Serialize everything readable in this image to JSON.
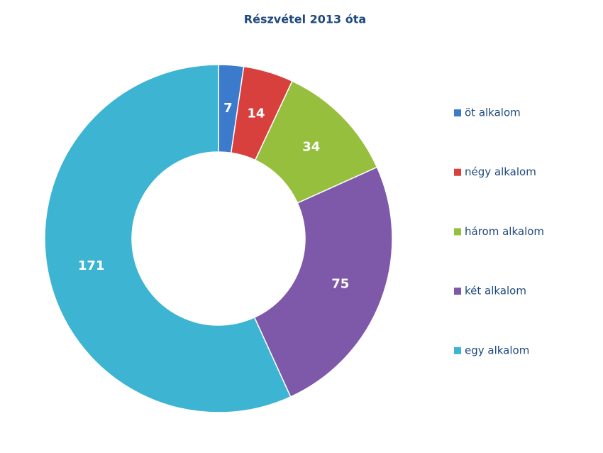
{
  "chart_data": {
    "type": "donut",
    "title": "Részvétel 2013  óta",
    "categories": [
      "öt alkalom",
      "négy alkalom",
      "három alkalom",
      "két alkalom",
      "egy alkalom"
    ],
    "values": [
      7,
      14,
      34,
      75,
      171
    ],
    "colors": [
      "#3c7bcb",
      "#d8403d",
      "#95bf3d",
      "#7e58a9",
      "#3cb4d2"
    ],
    "legend": "right"
  }
}
